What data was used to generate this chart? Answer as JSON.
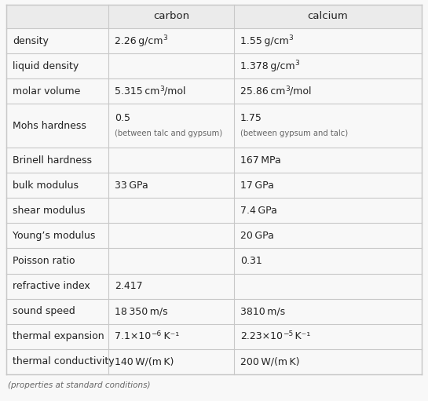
{
  "headers": [
    "",
    "carbon",
    "calcium"
  ],
  "rows": [
    {
      "property": "density",
      "carbon": {
        "main": "2.26 g/cm",
        "sup": "3",
        "suffix": ""
      },
      "calcium": {
        "main": "1.55 g/cm",
        "sup": "3",
        "suffix": ""
      }
    },
    {
      "property": "liquid density",
      "carbon": null,
      "calcium": {
        "main": "1.378 g/cm",
        "sup": "3",
        "suffix": ""
      }
    },
    {
      "property": "molar volume",
      "carbon": {
        "main": "5.315 cm",
        "sup": "3",
        "suffix": "/mol"
      },
      "calcium": {
        "main": "25.86 cm",
        "sup": "3",
        "suffix": "/mol"
      }
    },
    {
      "property": "Mohs hardness",
      "carbon": {
        "main": "0.5",
        "sup": "",
        "suffix": "",
        "sub": "(between talc and gypsum)"
      },
      "calcium": {
        "main": "1.75",
        "sup": "",
        "suffix": "",
        "sub": "(between gypsum and talc)"
      }
    },
    {
      "property": "Brinell hardness",
      "carbon": null,
      "calcium": {
        "main": "167 MPa",
        "sup": "",
        "suffix": ""
      }
    },
    {
      "property": "bulk modulus",
      "carbon": {
        "main": "33 GPa",
        "sup": "",
        "suffix": ""
      },
      "calcium": {
        "main": "17 GPa",
        "sup": "",
        "suffix": ""
      }
    },
    {
      "property": "shear modulus",
      "carbon": null,
      "calcium": {
        "main": "7.4 GPa",
        "sup": "",
        "suffix": ""
      }
    },
    {
      "property": "Young’s modulus",
      "carbon": null,
      "calcium": {
        "main": "20 GPa",
        "sup": "",
        "suffix": ""
      }
    },
    {
      "property": "Poisson ratio",
      "carbon": null,
      "calcium": {
        "main": "0.31",
        "sup": "",
        "suffix": ""
      }
    },
    {
      "property": "refractive index",
      "carbon": {
        "main": "2.417",
        "sup": "",
        "suffix": ""
      },
      "calcium": null
    },
    {
      "property": "sound speed",
      "carbon": {
        "main": "18 350 m/s",
        "sup": "",
        "suffix": ""
      },
      "calcium": {
        "main": "3810 m/s",
        "sup": "",
        "suffix": ""
      }
    },
    {
      "property": "thermal expansion",
      "carbon": {
        "main": "7.1×10",
        "sup": "−6",
        "suffix": " K⁻¹"
      },
      "calcium": {
        "main": "2.23×10",
        "sup": "−5",
        "suffix": " K⁻¹"
      }
    },
    {
      "property": "thermal conductivity",
      "carbon": {
        "main": "140 W/(m K)",
        "sup": "",
        "suffix": ""
      },
      "calcium": {
        "main": "200 W/(m K)",
        "sup": "",
        "suffix": ""
      }
    }
  ],
  "footer": "(properties at standard conditions)",
  "bg_color": "#f8f8f8",
  "header_bg": "#ebebeb",
  "line_color": "#c8c8c8",
  "text_color": "#222222",
  "sub_color": "#666666",
  "main_fs": 9.0,
  "sub_fs": 7.2,
  "header_fs": 9.5
}
